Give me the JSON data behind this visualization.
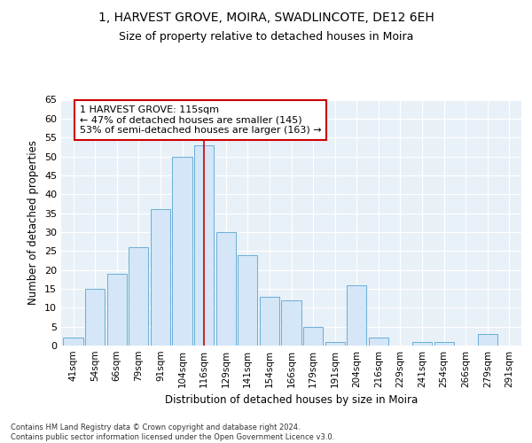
{
  "title1": "1, HARVEST GROVE, MOIRA, SWADLINCOTE, DE12 6EH",
  "title2": "Size of property relative to detached houses in Moira",
  "xlabel": "Distribution of detached houses by size in Moira",
  "ylabel": "Number of detached properties",
  "categories": [
    "41sqm",
    "54sqm",
    "66sqm",
    "79sqm",
    "91sqm",
    "104sqm",
    "116sqm",
    "129sqm",
    "141sqm",
    "154sqm",
    "166sqm",
    "179sqm",
    "191sqm",
    "204sqm",
    "216sqm",
    "229sqm",
    "241sqm",
    "254sqm",
    "266sqm",
    "279sqm",
    "291sqm"
  ],
  "values": [
    2,
    15,
    19,
    26,
    36,
    50,
    53,
    30,
    24,
    13,
    12,
    5,
    1,
    16,
    2,
    0,
    1,
    1,
    0,
    3,
    0
  ],
  "bar_color": "#d4e6f7",
  "bar_edge_color": "#6aaed6",
  "highlight_index": 6,
  "highlight_line_color": "#cc0000",
  "annotation_text": "1 HARVEST GROVE: 115sqm\n← 47% of detached houses are smaller (145)\n53% of semi-detached houses are larger (163) →",
  "annotation_box_color": "#ffffff",
  "annotation_box_edge": "#cc0000",
  "ylim": [
    0,
    65
  ],
  "yticks": [
    0,
    5,
    10,
    15,
    20,
    25,
    30,
    35,
    40,
    45,
    50,
    55,
    60,
    65
  ],
  "footnote": "Contains HM Land Registry data © Crown copyright and database right 2024.\nContains public sector information licensed under the Open Government Licence v3.0.",
  "bg_color": "#e8f0f8",
  "grid_color": "#ffffff",
  "fig_bg": "#ffffff"
}
